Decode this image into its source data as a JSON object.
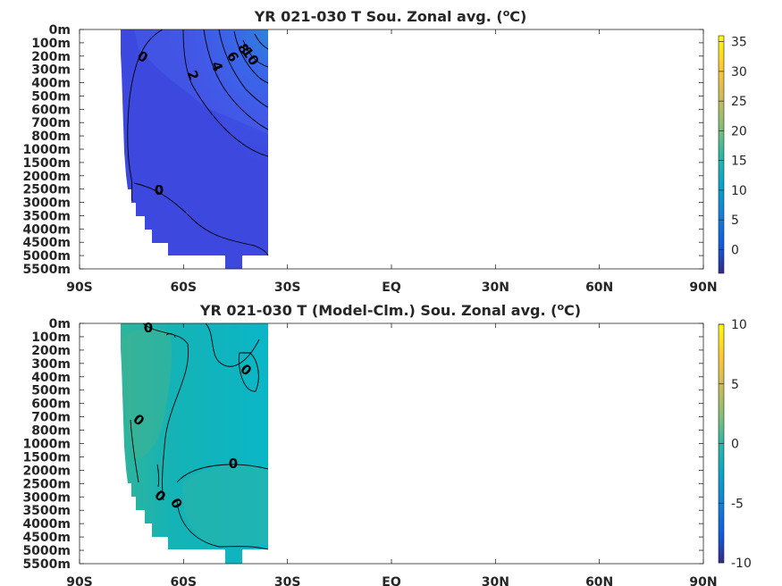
{
  "chart_data": [
    {
      "type": "heatmap",
      "title": "YR 021-030 T Sou. Zonal avg. (oC)",
      "title_parts": {
        "pre": "YR 021-030 T Sou. Zonal avg. (",
        "sup": "o",
        "post": "C)"
      },
      "x_ticks": [
        "90S",
        "60S",
        "30S",
        "EQ",
        "30N",
        "60N",
        "90N"
      ],
      "y_ticks": [
        "0m",
        "100m",
        "200m",
        "300m",
        "400m",
        "500m",
        "600m",
        "700m",
        "800m",
        "1000m",
        "1500m",
        "2000m",
        "2500m",
        "3000m",
        "3500m",
        "4000m",
        "4500m",
        "5000m",
        "5500m"
      ],
      "colorbar": {
        "ticks": [
          0,
          5,
          10,
          15,
          20,
          25,
          30,
          35
        ],
        "range": [
          -4,
          36
        ],
        "colormap": "parula"
      },
      "data_extent": {
        "lat": [
          "78S",
          "35S"
        ]
      },
      "contour_labels": [
        {
          "text": "0",
          "lat": -75,
          "depth": "200m"
        },
        {
          "text": "2",
          "lat": -62,
          "depth": "300m"
        },
        {
          "text": "4",
          "lat": -55,
          "depth": "250m"
        },
        {
          "text": "6",
          "lat": -50,
          "depth": "200m"
        },
        {
          "text": "8",
          "lat": -46,
          "depth": "150m"
        },
        {
          "text": "10",
          "lat": -44,
          "depth": "200m"
        },
        {
          "text": "0",
          "lat": -68,
          "depth": "2500m"
        }
      ]
    },
    {
      "type": "heatmap",
      "title": "YR 021-030 T (Model-Clm.) Sou. Zonal avg. (oC)",
      "title_parts": {
        "pre": "YR 021-030 T (Model-Clm.) Sou. Zonal avg. (",
        "sup": "o",
        "post": "C)"
      },
      "x_ticks": [
        "90S",
        "60S",
        "30S",
        "EQ",
        "30N",
        "60N",
        "90N"
      ],
      "y_ticks": [
        "0m",
        "100m",
        "200m",
        "300m",
        "400m",
        "500m",
        "600m",
        "700m",
        "800m",
        "1000m",
        "1500m",
        "2000m",
        "2500m",
        "3000m",
        "3500m",
        "4000m",
        "4500m",
        "5000m",
        "5500m"
      ],
      "colorbar": {
        "ticks": [
          -10,
          -5,
          0,
          5,
          10
        ],
        "range": [
          -10,
          10
        ],
        "colormap": "parula"
      },
      "data_extent": {
        "lat": [
          "78S",
          "35S"
        ]
      },
      "contour_labels": [
        {
          "text": "0",
          "lat": -71,
          "depth": "0m"
        },
        {
          "text": "0",
          "lat": -41,
          "depth": "400m"
        },
        {
          "text": "0",
          "lat": -75,
          "depth": "700m"
        },
        {
          "text": "0",
          "lat": -54,
          "depth": "2000m"
        },
        {
          "text": "0",
          "lat": -71,
          "depth": "3000m"
        },
        {
          "text": "0",
          "lat": -68,
          "depth": "3000m"
        }
      ]
    }
  ]
}
